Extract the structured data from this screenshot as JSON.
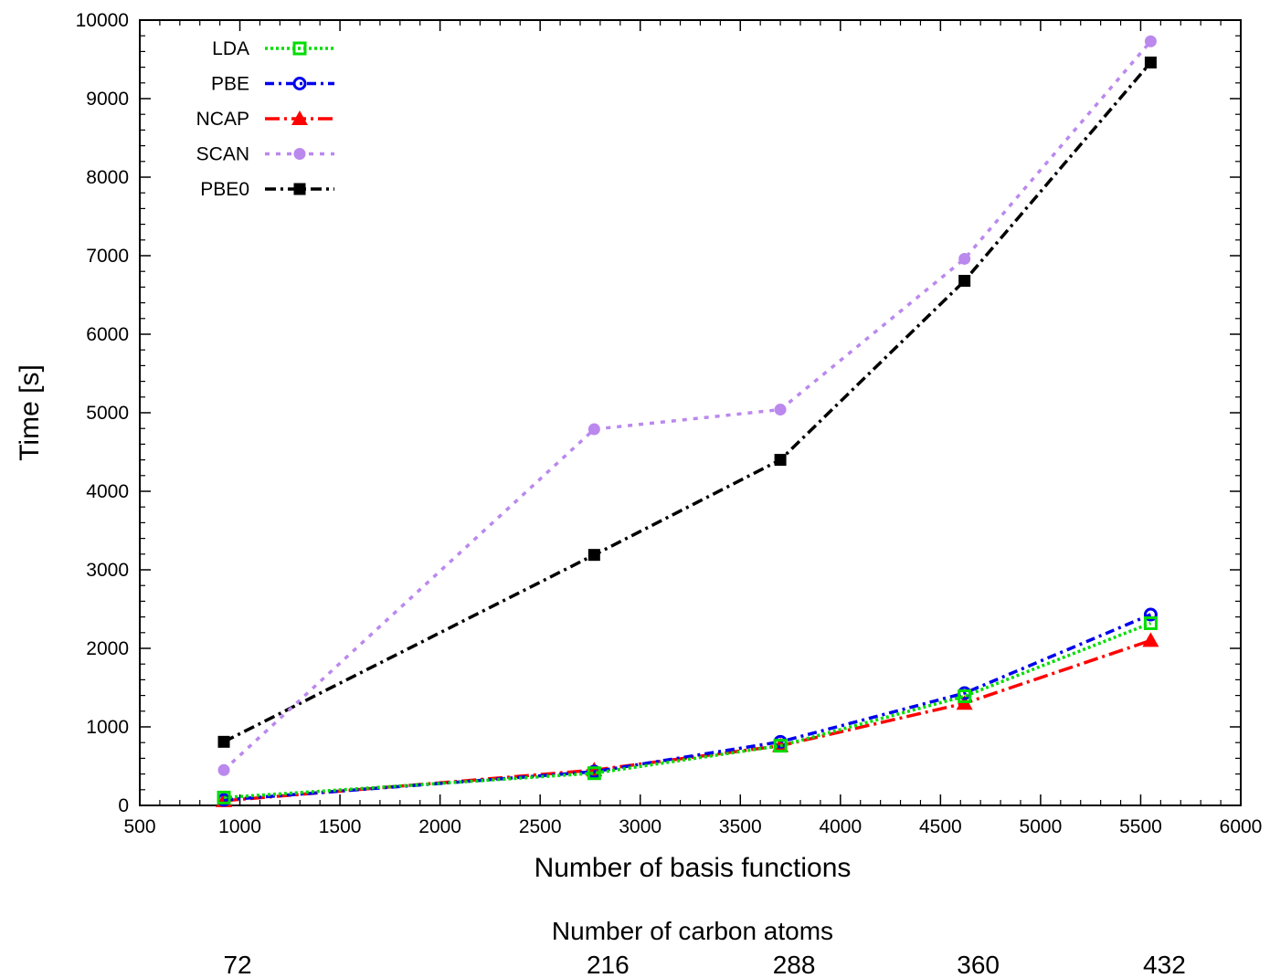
{
  "chart_data": {
    "type": "line",
    "xlabel": "Number of basis functions",
    "ylabel": "Time  [s]",
    "xlim": [
      500,
      6000
    ],
    "ylim": [
      0,
      10000
    ],
    "xticks": [
      500,
      1000,
      1500,
      2000,
      2500,
      3000,
      3500,
      4000,
      4500,
      5000,
      5500,
      6000
    ],
    "yticks": [
      0,
      1000,
      2000,
      3000,
      4000,
      5000,
      6000,
      7000,
      8000,
      9000,
      10000
    ],
    "grid": false,
    "legend_position": "top-left",
    "x": [
      920,
      2770,
      3700,
      4620,
      5550
    ],
    "series": [
      {
        "name": "LDA",
        "color": "#00dd00",
        "marker": "open-square",
        "dash": "3,3",
        "values": [
          100,
          410,
          760,
          1390,
          2320
        ]
      },
      {
        "name": "PBE",
        "color": "#0000ee",
        "marker": "open-circle",
        "dash": "10,5,3,5",
        "values": [
          70,
          430,
          810,
          1430,
          2430
        ]
      },
      {
        "name": "NCAP",
        "color": "#ff0000",
        "marker": "filled-triangle",
        "dash": "16,5,3,5",
        "values": [
          60,
          450,
          760,
          1300,
          2100
        ]
      },
      {
        "name": "SCAN",
        "color": "#bb88ee",
        "marker": "filled-circle",
        "dash": "5,7",
        "values": [
          450,
          4790,
          5040,
          6960,
          9730
        ]
      },
      {
        "name": "PBE0",
        "color": "#000000",
        "marker": "filled-square",
        "dash": "12,5,3,5",
        "values": [
          810,
          3190,
          4400,
          6680,
          9460
        ]
      }
    ],
    "secondary_axis": {
      "label": "Number of carbon atoms",
      "ticks": [
        {
          "x": 920,
          "label": "72"
        },
        {
          "x": 2770,
          "label": "216"
        },
        {
          "x": 3700,
          "label": "288"
        },
        {
          "x": 4620,
          "label": "360"
        },
        {
          "x": 5550,
          "label": "432"
        }
      ]
    }
  }
}
